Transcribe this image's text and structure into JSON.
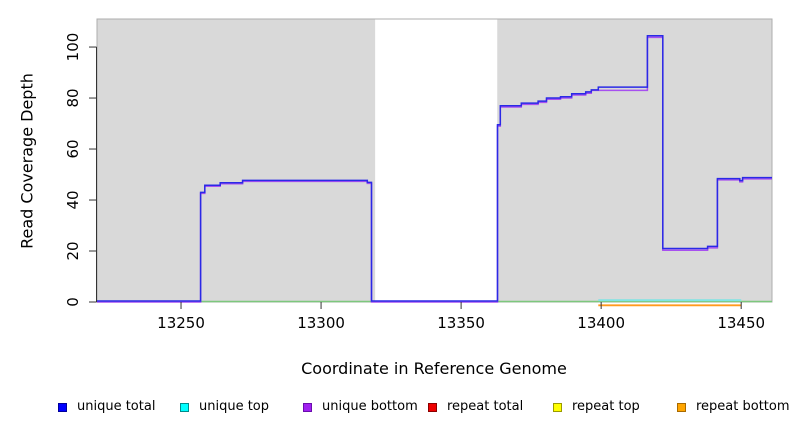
{
  "x_axis": {
    "title": "Coordinate in Reference Genome",
    "tick_values": [
      13250,
      13300,
      13350,
      13400,
      13450
    ],
    "tick_labels": [
      "13250",
      "13300",
      "13350",
      "13400",
      "13450"
    ]
  },
  "y_axis": {
    "title": "Read Coverage Depth",
    "tick_values": [
      0,
      20,
      40,
      60,
      80,
      100
    ],
    "tick_labels": [
      "0",
      "20",
      "40",
      "60",
      "80",
      "100"
    ]
  },
  "legend": {
    "items": [
      {
        "label": "unique total",
        "color": "#0000FF",
        "border": "#00009B"
      },
      {
        "label": "unique top",
        "color": "#00FFFF",
        "border": "#008B8B"
      },
      {
        "label": "unique bottom",
        "color": "#A020F0",
        "border": "#6A0DAD"
      },
      {
        "label": "repeat total",
        "color": "#EE0000",
        "border": "#8B0000"
      },
      {
        "label": "repeat top",
        "color": "#FFFF00",
        "border": "#9B9B00"
      },
      {
        "label": "repeat bottom",
        "color": "#FFA500",
        "border": "#A86A00"
      }
    ]
  },
  "chart_data": {
    "type": "line",
    "title": "",
    "xlabel": "Coordinate in Reference Genome",
    "ylabel": "Read Coverage Depth",
    "xlim": [
      13220,
      13461
    ],
    "ylim": [
      0,
      111
    ],
    "grid": false,
    "plot_background": "#D9D9D9",
    "uncovered_region": {
      "from": 13319.3,
      "to": 13362.9,
      "color": "#FFFFFF"
    },
    "axis_color": "#333333",
    "series": [
      {
        "name": "baseline-green",
        "color": "#7DC87D",
        "width": 1.4,
        "points": [
          [
            13221,
            0.2
          ],
          [
            13461,
            0.2
          ]
        ]
      },
      {
        "name": "repeat bottom",
        "color": "#FF9A1E",
        "width": 1.8,
        "points": [
          [
            13399,
            -1.3
          ],
          [
            13450,
            -1.3
          ]
        ]
      },
      {
        "name": "unique top",
        "color": "#7FE4E4",
        "width": 1.8,
        "points": [
          [
            13399,
            0.7
          ],
          [
            13450,
            0.7
          ]
        ]
      },
      {
        "name": "unique bottom",
        "color": "#A750F0",
        "width": 1.5,
        "points": [
          [
            13220,
            0
          ],
          [
            13257,
            0
          ],
          [
            13257,
            42.6
          ],
          [
            13258.5,
            42.6
          ],
          [
            13258.5,
            45.4
          ],
          [
            13264,
            45.4
          ],
          [
            13264,
            46.4
          ],
          [
            13272,
            46.4
          ],
          [
            13272,
            47.3
          ],
          [
            13316.5,
            47.3
          ],
          [
            13316.5,
            46.5
          ],
          [
            13318,
            46.5
          ],
          [
            13318,
            0
          ],
          [
            13363,
            0
          ],
          [
            13363,
            69
          ],
          [
            13364,
            69
          ],
          [
            13364,
            76.5
          ],
          [
            13371.5,
            76.5
          ],
          [
            13371.5,
            77.5
          ],
          [
            13377.5,
            77.5
          ],
          [
            13377.5,
            78.3
          ],
          [
            13380.5,
            78.3
          ],
          [
            13380.5,
            79.5
          ],
          [
            13385.5,
            79.5
          ],
          [
            13385.5,
            80
          ],
          [
            13389.5,
            80
          ],
          [
            13389.5,
            81.2
          ],
          [
            13394.5,
            81.2
          ],
          [
            13394.5,
            81.9
          ],
          [
            13396.5,
            81.9
          ],
          [
            13396.5,
            83
          ],
          [
            13416.5,
            83
          ],
          [
            13416.5,
            103.8
          ],
          [
            13422,
            103.8
          ],
          [
            13422,
            20.3
          ],
          [
            13438,
            20.3
          ],
          [
            13438,
            21.2
          ],
          [
            13441.5,
            21.2
          ],
          [
            13441.5,
            47.9
          ],
          [
            13449.5,
            47.9
          ],
          [
            13449.5,
            47.1
          ],
          [
            13450.5,
            47.1
          ],
          [
            13450.5,
            48.3
          ],
          [
            13461,
            48.3
          ]
        ]
      },
      {
        "name": "unique total",
        "color": "#2A2AE6",
        "width": 1.5,
        "points": [
          [
            13220,
            0.4
          ],
          [
            13257,
            0.4
          ],
          [
            13257,
            43
          ],
          [
            13258.5,
            43
          ],
          [
            13258.5,
            45.8
          ],
          [
            13264,
            45.8
          ],
          [
            13264,
            46.8
          ],
          [
            13272,
            46.8
          ],
          [
            13272,
            47.7
          ],
          [
            13316.5,
            47.7
          ],
          [
            13316.5,
            46.9
          ],
          [
            13318,
            46.9
          ],
          [
            13318,
            0.4
          ],
          [
            13363,
            0.4
          ],
          [
            13363,
            69.5
          ],
          [
            13364,
            69.5
          ],
          [
            13364,
            77
          ],
          [
            13371.5,
            77
          ],
          [
            13371.5,
            78
          ],
          [
            13377.5,
            78
          ],
          [
            13377.5,
            78.8
          ],
          [
            13380.5,
            78.8
          ],
          [
            13380.5,
            80
          ],
          [
            13385.5,
            80
          ],
          [
            13385.5,
            80.5
          ],
          [
            13389.5,
            80.5
          ],
          [
            13389.5,
            81.7
          ],
          [
            13394.5,
            81.7
          ],
          [
            13394.5,
            82.4
          ],
          [
            13396.5,
            82.4
          ],
          [
            13396.5,
            83.2
          ],
          [
            13399,
            83.2
          ],
          [
            13399,
            84.3
          ],
          [
            13416.5,
            84.3
          ],
          [
            13416.5,
            104.4
          ],
          [
            13422,
            104.4
          ],
          [
            13422,
            21
          ],
          [
            13438,
            21
          ],
          [
            13438,
            21.8
          ],
          [
            13441.5,
            21.8
          ],
          [
            13441.5,
            48.4
          ],
          [
            13449.5,
            48.4
          ],
          [
            13449.5,
            47.6
          ],
          [
            13450.5,
            47.6
          ],
          [
            13450.5,
            48.8
          ],
          [
            13461,
            48.8
          ]
        ]
      }
    ]
  }
}
